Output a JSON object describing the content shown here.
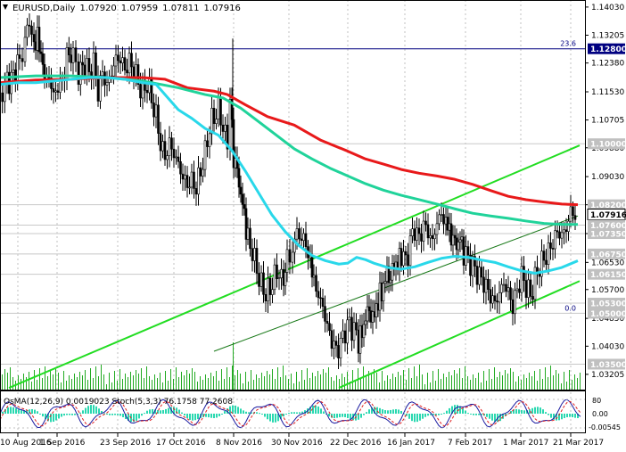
{
  "chart_data": {
    "type": "candlestick",
    "symbol": "EURUSD,Daily",
    "ohlc_label": [
      "1.07920",
      "1.07959",
      "1.07811",
      "1.07916"
    ],
    "x_labels": [
      "10 Aug 2016",
      "1 Sep 2016",
      "23 Sep 2016",
      "17 Oct 2016",
      "8 Nov 2016",
      "30 Nov 2016",
      "22 Dec 2016",
      "16 Jan 2017",
      "7 Feb 2017",
      "1 Mar 2017",
      "21 Mar 2017"
    ],
    "y_range": [
      1.0275,
      1.1408
    ],
    "y_ticks": [
      1.1403,
      1.132,
      1.1238,
      1.1153,
      1.107,
      1.0988,
      1.0903,
      1.082,
      1.0735,
      1.065,
      1.057,
      1.0485,
      1.0403,
      1.032
    ],
    "y_tick_labels": [
      "1.14030",
      "1.13205",
      "1.12380",
      "1.11530",
      "1.10705",
      "1.09880",
      "1.09030",
      "1.08200",
      "1.07350",
      "1.06530",
      "1.05700",
      "1.04850",
      "1.04030",
      "1.03205"
    ],
    "level_labels": [
      {
        "label": "1.12800",
        "value": 1.128,
        "color": "#000080"
      },
      {
        "label": "1.10000",
        "value": 1.1,
        "color": "#808080"
      },
      {
        "label": "1.08200",
        "value": 1.082,
        "color": "#808080"
      },
      {
        "label": "1.07916",
        "value": 1.07916,
        "color": "#000000"
      },
      {
        "label": "1.07600",
        "value": 1.076,
        "color": "#808080"
      },
      {
        "label": "1.07350",
        "value": 1.0735,
        "color": "#808080"
      },
      {
        "label": "1.06750",
        "value": 1.0675,
        "color": "#808080"
      },
      {
        "label": "1.06150",
        "value": 1.0615,
        "color": "#808080"
      },
      {
        "label": "1.05300",
        "value": 1.053,
        "color": "#808080"
      },
      {
        "label": "1.05000",
        "value": 1.05,
        "color": "#808080"
      },
      {
        "label": "1.03500",
        "value": 1.035,
        "color": "#808080"
      }
    ],
    "fib_labels": [
      {
        "label": "23.6",
        "value": 1.128
      },
      {
        "label": "0.0",
        "value": 1.05
      }
    ],
    "ma_fast": [
      [
        0,
        1.1175
      ],
      [
        20,
        1.118
      ],
      [
        40,
        1.118
      ],
      [
        60,
        1.1185
      ],
      [
        80,
        1.119
      ],
      [
        100,
        1.1195
      ],
      [
        120,
        1.1195
      ],
      [
        140,
        1.119
      ],
      [
        160,
        1.118
      ],
      [
        175,
        1.1175
      ],
      [
        190,
        1.113
      ],
      [
        200,
        1.11
      ],
      [
        215,
        1.1075
      ],
      [
        230,
        1.1045
      ],
      [
        245,
        1.1025
      ],
      [
        260,
        1.098
      ],
      [
        275,
        1.092
      ],
      [
        290,
        1.0855
      ],
      [
        305,
        1.079
      ],
      [
        320,
        1.074
      ],
      [
        335,
        1.07
      ],
      [
        350,
        1.067
      ],
      [
        365,
        1.0655
      ],
      [
        380,
        1.0645
      ],
      [
        390,
        1.0648
      ],
      [
        400,
        1.0665
      ],
      [
        410,
        1.0658
      ],
      [
        420,
        1.0647
      ],
      [
        435,
        1.0635
      ],
      [
        450,
        1.063
      ],
      [
        465,
        1.0637
      ],
      [
        480,
        1.065
      ],
      [
        495,
        1.0662
      ],
      [
        510,
        1.0668
      ],
      [
        525,
        1.0665
      ],
      [
        540,
        1.0657
      ],
      [
        555,
        1.065
      ],
      [
        570,
        1.0637
      ],
      [
        585,
        1.0625
      ],
      [
        600,
        1.0618
      ],
      [
        615,
        1.0625
      ],
      [
        630,
        1.0635
      ],
      [
        648,
        1.0655
      ]
    ],
    "ma_mid": [
      [
        0,
        1.1195
      ],
      [
        40,
        1.12
      ],
      [
        80,
        1.12
      ],
      [
        120,
        1.1195
      ],
      [
        160,
        1.1185
      ],
      [
        200,
        1.1165
      ],
      [
        230,
        1.1145
      ],
      [
        250,
        1.1135
      ],
      [
        270,
        1.1105
      ],
      [
        290,
        1.1065
      ],
      [
        310,
        1.1025
      ],
      [
        330,
        1.0985
      ],
      [
        350,
        1.0955
      ],
      [
        370,
        1.0928
      ],
      [
        390,
        1.0905
      ],
      [
        410,
        1.0882
      ],
      [
        430,
        1.0863
      ],
      [
        450,
        1.0848
      ],
      [
        470,
        1.0835
      ],
      [
        490,
        1.0822
      ],
      [
        510,
        1.0808
      ],
      [
        530,
        1.0795
      ],
      [
        550,
        1.0787
      ],
      [
        570,
        1.078
      ],
      [
        590,
        1.0772
      ],
      [
        610,
        1.0765
      ],
      [
        630,
        1.0762
      ],
      [
        648,
        1.0762
      ]
    ],
    "ma_slow": [
      [
        0,
        1.118
      ],
      [
        40,
        1.1188
      ],
      [
        80,
        1.119
      ],
      [
        120,
        1.1195
      ],
      [
        160,
        1.1195
      ],
      [
        185,
        1.119
      ],
      [
        210,
        1.1165
      ],
      [
        240,
        1.1155
      ],
      [
        255,
        1.1145
      ],
      [
        275,
        1.1115
      ],
      [
        300,
        1.108
      ],
      [
        330,
        1.1055
      ],
      [
        360,
        1.101
      ],
      [
        390,
        1.0978
      ],
      [
        410,
        1.0955
      ],
      [
        430,
        1.094
      ],
      [
        450,
        1.0924
      ],
      [
        470,
        1.0913
      ],
      [
        490,
        1.0905
      ],
      [
        510,
        1.0895
      ],
      [
        530,
        1.088
      ],
      [
        550,
        1.0862
      ],
      [
        570,
        1.0845
      ],
      [
        590,
        1.0835
      ],
      [
        610,
        1.0828
      ],
      [
        630,
        1.0822
      ],
      [
        648,
        1.082
      ]
    ],
    "channel_upper": [
      [
        10,
        1.028
      ],
      [
        650,
        1.0995
      ]
    ],
    "channel_lower": [
      [
        380,
        1.028
      ],
      [
        650,
        1.0595
      ]
    ],
    "channel_mid": [
      [
        240,
        1.0388
      ],
      [
        648,
        1.0787
      ]
    ],
    "candles_path": [
      [
        0,
        1.115
      ],
      [
        8,
        1.118
      ],
      [
        15,
        1.12
      ],
      [
        22,
        1.125
      ],
      [
        28,
        1.131
      ],
      [
        33,
        1.136
      ],
      [
        38,
        1.129
      ],
      [
        42,
        1.131
      ],
      [
        46,
        1.127
      ],
      [
        50,
        1.118
      ],
      [
        55,
        1.12
      ],
      [
        60,
        1.114
      ],
      [
        65,
        1.117
      ],
      [
        70,
        1.118
      ],
      [
        75,
        1.126
      ],
      [
        82,
        1.126
      ],
      [
        88,
        1.121
      ],
      [
        95,
        1.123
      ],
      [
        100,
        1.121
      ],
      [
        105,
        1.124
      ],
      [
        110,
        1.115
      ],
      [
        115,
        1.121
      ],
      [
        120,
        1.117
      ],
      [
        125,
        1.121
      ],
      [
        130,
        1.125
      ],
      [
        135,
        1.125
      ],
      [
        140,
        1.122
      ],
      [
        145,
        1.124
      ],
      [
        150,
        1.122
      ],
      [
        155,
        1.118
      ],
      [
        160,
        1.115
      ],
      [
        165,
        1.118
      ],
      [
        170,
        1.113
      ],
      [
        175,
        1.108
      ],
      [
        180,
        1.1
      ],
      [
        185,
        1.096
      ],
      [
        190,
        1.1
      ],
      [
        195,
        1.097
      ],
      [
        200,
        1.094
      ],
      [
        205,
        1.09
      ],
      [
        210,
        1.088
      ],
      [
        215,
        1.089
      ],
      [
        220,
        1.087
      ],
      [
        225,
        1.092
      ],
      [
        230,
        1.097
      ],
      [
        235,
        1.105
      ],
      [
        240,
        1.108
      ],
      [
        245,
        1.11
      ],
      [
        250,
        1.105
      ],
      [
        255,
        1.1
      ],
      [
        258,
        1.114
      ],
      [
        262,
        1.096
      ],
      [
        266,
        1.092
      ],
      [
        270,
        1.085
      ],
      [
        274,
        1.079
      ],
      [
        278,
        1.072
      ],
      [
        283,
        1.068
      ],
      [
        288,
        1.063
      ],
      [
        293,
        1.058
      ],
      [
        298,
        1.056
      ],
      [
        303,
        1.057
      ],
      [
        308,
        1.061
      ],
      [
        313,
        1.062
      ],
      [
        318,
        1.059
      ],
      [
        322,
        1.066
      ],
      [
        328,
        1.069
      ],
      [
        333,
        1.074
      ],
      [
        338,
        1.072
      ],
      [
        343,
        1.071
      ],
      [
        348,
        1.064
      ],
      [
        352,
        1.06
      ],
      [
        357,
        1.055
      ],
      [
        362,
        1.052
      ],
      [
        367,
        1.046
      ],
      [
        372,
        1.042
      ],
      [
        377,
        1.039
      ],
      [
        382,
        1.041
      ],
      [
        387,
        1.045
      ],
      [
        392,
        1.047
      ],
      [
        397,
        1.045
      ],
      [
        402,
        1.042
      ],
      [
        406,
        1.044
      ],
      [
        410,
        1.049
      ],
      [
        414,
        1.051
      ],
      [
        418,
        1.048
      ],
      [
        422,
        1.052
      ],
      [
        426,
        1.055
      ],
      [
        430,
        1.058
      ],
      [
        434,
        1.062
      ],
      [
        438,
        1.06
      ],
      [
        442,
        1.065
      ],
      [
        446,
        1.064
      ],
      [
        450,
        1.068
      ],
      [
        455,
        1.065
      ],
      [
        460,
        1.071
      ],
      [
        465,
        1.075
      ],
      [
        470,
        1.072
      ],
      [
        475,
        1.076
      ],
      [
        480,
        1.074
      ],
      [
        485,
        1.071
      ],
      [
        490,
        1.077
      ],
      [
        495,
        1.079
      ],
      [
        500,
        1.077
      ],
      [
        504,
        1.074
      ],
      [
        508,
        1.072
      ],
      [
        512,
        1.07
      ],
      [
        516,
        1.072
      ],
      [
        520,
        1.068
      ],
      [
        525,
        1.066
      ],
      [
        530,
        1.064
      ],
      [
        535,
        1.062
      ],
      [
        540,
        1.06
      ],
      [
        545,
        1.058
      ],
      [
        550,
        1.055
      ],
      [
        555,
        1.053
      ],
      [
        560,
        1.056
      ],
      [
        565,
        1.059
      ],
      [
        570,
        1.056
      ],
      [
        575,
        1.052
      ],
      [
        580,
        1.057
      ],
      [
        585,
        1.061
      ],
      [
        590,
        1.058
      ],
      [
        595,
        1.055
      ],
      [
        600,
        1.06
      ],
      [
        605,
        1.064
      ],
      [
        610,
        1.066
      ],
      [
        615,
        1.068
      ],
      [
        620,
        1.071
      ],
      [
        625,
        1.074
      ],
      [
        630,
        1.073
      ],
      [
        635,
        1.075
      ],
      [
        640,
        1.08
      ],
      [
        645,
        1.079
      ]
    ]
  }
}
